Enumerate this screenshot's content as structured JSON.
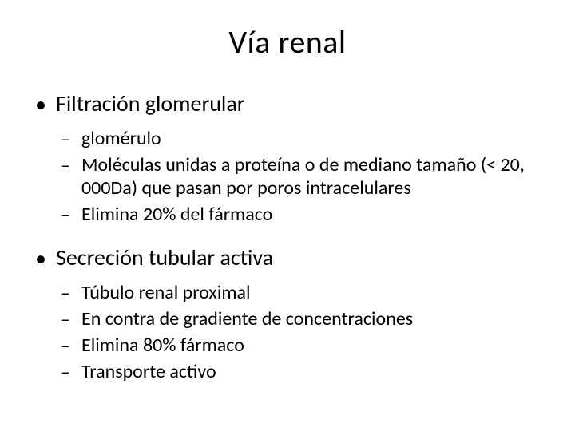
{
  "slide": {
    "title": "Vía renal",
    "sections": [
      {
        "heading": "Filtración glomerular",
        "items": [
          "glomérulo",
          "Moléculas unidas a proteína o de mediano tamaño (< 20, 000Da) que pasan por poros intracelulares",
          "Elimina 20% del fármaco"
        ]
      },
      {
        "heading": "Secreción tubular activa",
        "items": [
          "Túbulo renal proximal",
          "En contra de gradiente de concentraciones",
          "Elimina 80% fármaco",
          "Transporte activo"
        ]
      }
    ],
    "markers": {
      "l1": "•",
      "l2": "–"
    },
    "colors": {
      "background": "#ffffff",
      "text": "#000000"
    },
    "fonts": {
      "title_size_pt": 40,
      "l1_size_pt": 28,
      "l2_size_pt": 24
    }
  }
}
